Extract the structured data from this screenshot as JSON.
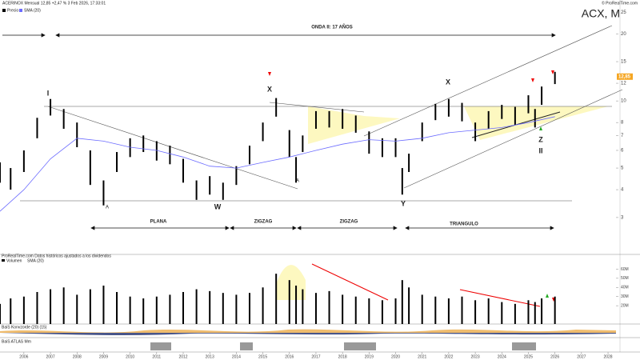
{
  "header": {
    "title": "ACERINOX Mensual 12,85 +2,47 % 3 Feb 2026, 17:33:01",
    "ticker": "ACX, M",
    "brand": "© ProRealTime.com",
    "legend_price": "Precio",
    "legend_sma": "SMA (20)",
    "source": "ProRealTime.com Datos históricos ajustados a los dividendos",
    "volume_title": "Volumen",
    "volume_sma": "SMA (20)",
    "indicator1": "BaiS Konvzorde (20) (15)",
    "indicator2": "BaiS ATLAS Mm"
  },
  "annotations": [
    "ONDA II: 17 AÑOS",
    "PLANA",
    "ZIGZAG",
    "ZIGZAG",
    "TRIANGULO"
  ],
  "wave_labels": [
    "I",
    "X",
    "X",
    "Y",
    "Z",
    "II",
    "W",
    "A",
    "A"
  ],
  "chart_data": [
    {
      "type": "ohlc",
      "log_y": true,
      "x": [
        2005.1,
        2005.5,
        2006,
        2006.5,
        2007,
        2007.5,
        2008,
        2008.5,
        2009,
        2009.5,
        2010,
        2010.5,
        2011,
        2011.5,
        2012,
        2012.5,
        2013,
        2013.5,
        2014,
        2014.5,
        2015,
        2015.5,
        2016,
        2016.25,
        2016.5,
        2017,
        2017.5,
        2018,
        2018.5,
        2019,
        2019.5,
        2020,
        2020.25,
        2020.5,
        2021,
        2021.5,
        2022,
        2022.5,
        2023,
        2023.5,
        2024,
        2024.5,
        2025,
        2025.25,
        2025.5,
        2026
      ],
      "high": [
        5.3,
        5.0,
        6.0,
        8.4,
        10.2,
        9.2,
        8.0,
        6.0,
        4.4,
        5.9,
        6.8,
        7.0,
        6.6,
        6.3,
        5.5,
        4.4,
        4.6,
        4.3,
        5.1,
        6.3,
        8.0,
        10.3,
        7.4,
        5.6,
        7.0,
        9.0,
        9.0,
        9.2,
        8.6,
        7.3,
        6.8,
        6.8,
        5.0,
        5.8,
        8.0,
        9.7,
        10.2,
        9.8,
        8.0,
        9.0,
        9.6,
        9.4,
        10.6,
        9.2,
        11.6,
        13.5
      ],
      "low": [
        4.3,
        4.0,
        4.8,
        6.8,
        8.6,
        7.5,
        6.2,
        4.2,
        3.4,
        4.8,
        5.6,
        5.9,
        5.4,
        5.2,
        4.3,
        3.6,
        3.8,
        3.6,
        4.2,
        5.2,
        6.6,
        8.5,
        5.6,
        4.3,
        5.9,
        7.5,
        7.6,
        7.5,
        7.2,
        5.8,
        5.6,
        5.6,
        3.8,
        4.8,
        6.6,
        8.2,
        8.5,
        8.1,
        6.6,
        7.5,
        8.3,
        7.8,
        8.8,
        7.6,
        9.6,
        11.9
      ],
      "color": "#000000",
      "sma": {
        "name": "SMA (20)",
        "color": "#6b6bff",
        "x": [
          2005.1,
          2006,
          2007,
          2008,
          2009,
          2010,
          2011,
          2012,
          2013,
          2014,
          2015,
          2016,
          2017,
          2018,
          2019,
          2020,
          2021,
          2022,
          2023,
          2024,
          2025,
          2026
        ],
        "values": [
          3.2,
          4.0,
          5.5,
          6.8,
          6.6,
          6.2,
          6.0,
          5.6,
          5.1,
          5.0,
          5.3,
          5.6,
          6.0,
          6.4,
          6.7,
          6.6,
          6.8,
          7.2,
          7.4,
          7.6,
          8.0,
          8.5
        ]
      },
      "last_price": {
        "value": 12.85,
        "label": "12,85"
      },
      "xlim": [
        2005.1,
        2028.3
      ],
      "xticks": [
        2006,
        2007,
        2008,
        2009,
        2010,
        2011,
        2012,
        2013,
        2014,
        2015,
        2016,
        2017,
        2018,
        2019,
        2020,
        2021,
        2022,
        2023,
        2024,
        2025,
        2026,
        2027,
        2028
      ],
      "ylim": [
        2.05,
        27.2
      ],
      "yticks": [
        3,
        4,
        5,
        6,
        7,
        8,
        10,
        12,
        15,
        20,
        25
      ]
    },
    {
      "type": "volume",
      "x": [
        2005.1,
        2005.5,
        2006,
        2006.5,
        2007,
        2007.5,
        2008,
        2008.5,
        2009,
        2009.5,
        2010,
        2010.5,
        2011,
        2011.5,
        2012,
        2012.5,
        2013,
        2013.5,
        2014,
        2014.5,
        2015,
        2015.5,
        2016,
        2016.25,
        2016.5,
        2017,
        2017.5,
        2018,
        2018.5,
        2019,
        2019.5,
        2020,
        2020.25,
        2020.5,
        2021,
        2021.5,
        2022,
        2022.5,
        2023,
        2023.5,
        2024,
        2024.5,
        2025,
        2025.25,
        2025.5,
        2026
      ],
      "values": [
        22,
        28,
        30,
        35,
        38,
        40,
        32,
        38,
        42,
        35,
        30,
        28,
        30,
        32,
        35,
        38,
        36,
        34,
        32,
        34,
        40,
        55,
        48,
        42,
        38,
        34,
        36,
        32,
        30,
        28,
        26,
        28,
        48,
        40,
        32,
        30,
        28,
        30,
        26,
        28,
        24,
        22,
        26,
        24,
        28,
        30
      ],
      "color": "#000000",
      "ylim": [
        0,
        70
      ],
      "yticks": [
        {
          "value": 20,
          "label": "20M"
        },
        {
          "value": 30,
          "label": "30M"
        },
        {
          "value": 40,
          "label": "40M"
        },
        {
          "value": 50,
          "label": "50M"
        },
        {
          "value": 60,
          "label": "60M"
        }
      ]
    }
  ]
}
